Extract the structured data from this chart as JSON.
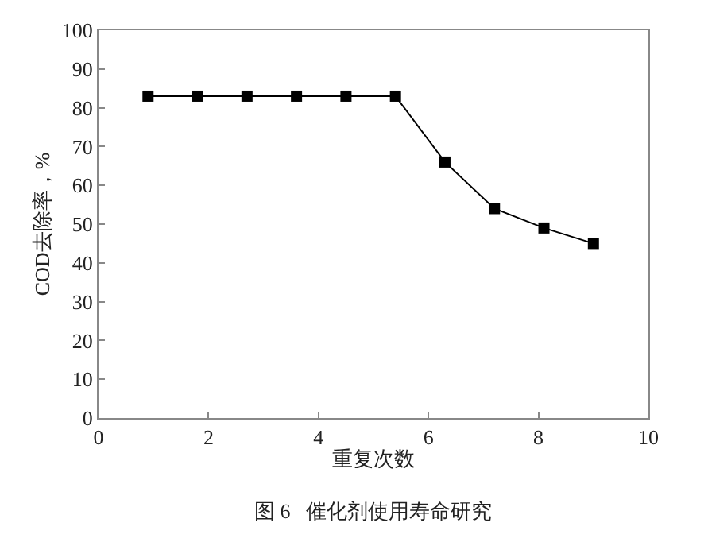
{
  "chart_data": {
    "type": "line",
    "xlabel": "重复次数",
    "ylabel": "COD去除率，%",
    "annotations": [
      "图 6   催化剂使用寿命研究"
    ],
    "x": [
      0.9,
      1.8,
      2.7,
      3.6,
      4.5,
      5.4,
      6.3,
      7.2,
      8.1,
      9.0
    ],
    "series": [
      {
        "color": "#000000",
        "values": [
          83,
          83,
          83,
          83,
          83,
          83,
          66,
          54,
          49,
          45
        ]
      }
    ],
    "xlim": [
      0,
      10
    ],
    "xticks": [
      0,
      2,
      4,
      6,
      8,
      10
    ],
    "ylim": [
      0,
      100
    ],
    "yticks": [
      0,
      10,
      20,
      30,
      40,
      50,
      60,
      70,
      80,
      90,
      100
    ],
    "marker": "square",
    "line_style": "solid"
  }
}
